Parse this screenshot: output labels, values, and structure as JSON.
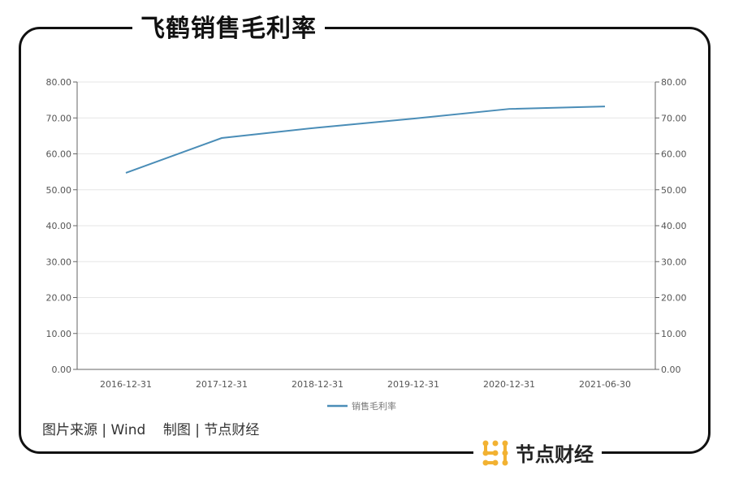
{
  "title": "飞鹤销售毛利率",
  "source": "图片来源 | Wind    制图 | 节点财经",
  "brand": {
    "name": "节点财经",
    "logo_color": "#F2B232"
  },
  "chart_data": {
    "type": "line",
    "categories": [
      "2016-12-31",
      "2017-12-31",
      "2018-12-31",
      "2019-12-31",
      "2020-12-31",
      "2021-06-30"
    ],
    "series": [
      {
        "name": "销售毛利率",
        "values": [
          54.7,
          64.4,
          67.3,
          69.8,
          72.5,
          73.2
        ],
        "color": "#4A8DB7"
      }
    ],
    "ylim": [
      0,
      80
    ],
    "yticks": [
      "0.00",
      "10.00",
      "20.00",
      "30.00",
      "40.00",
      "50.00",
      "60.00",
      "70.00",
      "80.00"
    ],
    "dual_y_axis": true,
    "grid": true,
    "legend": "bottom"
  }
}
